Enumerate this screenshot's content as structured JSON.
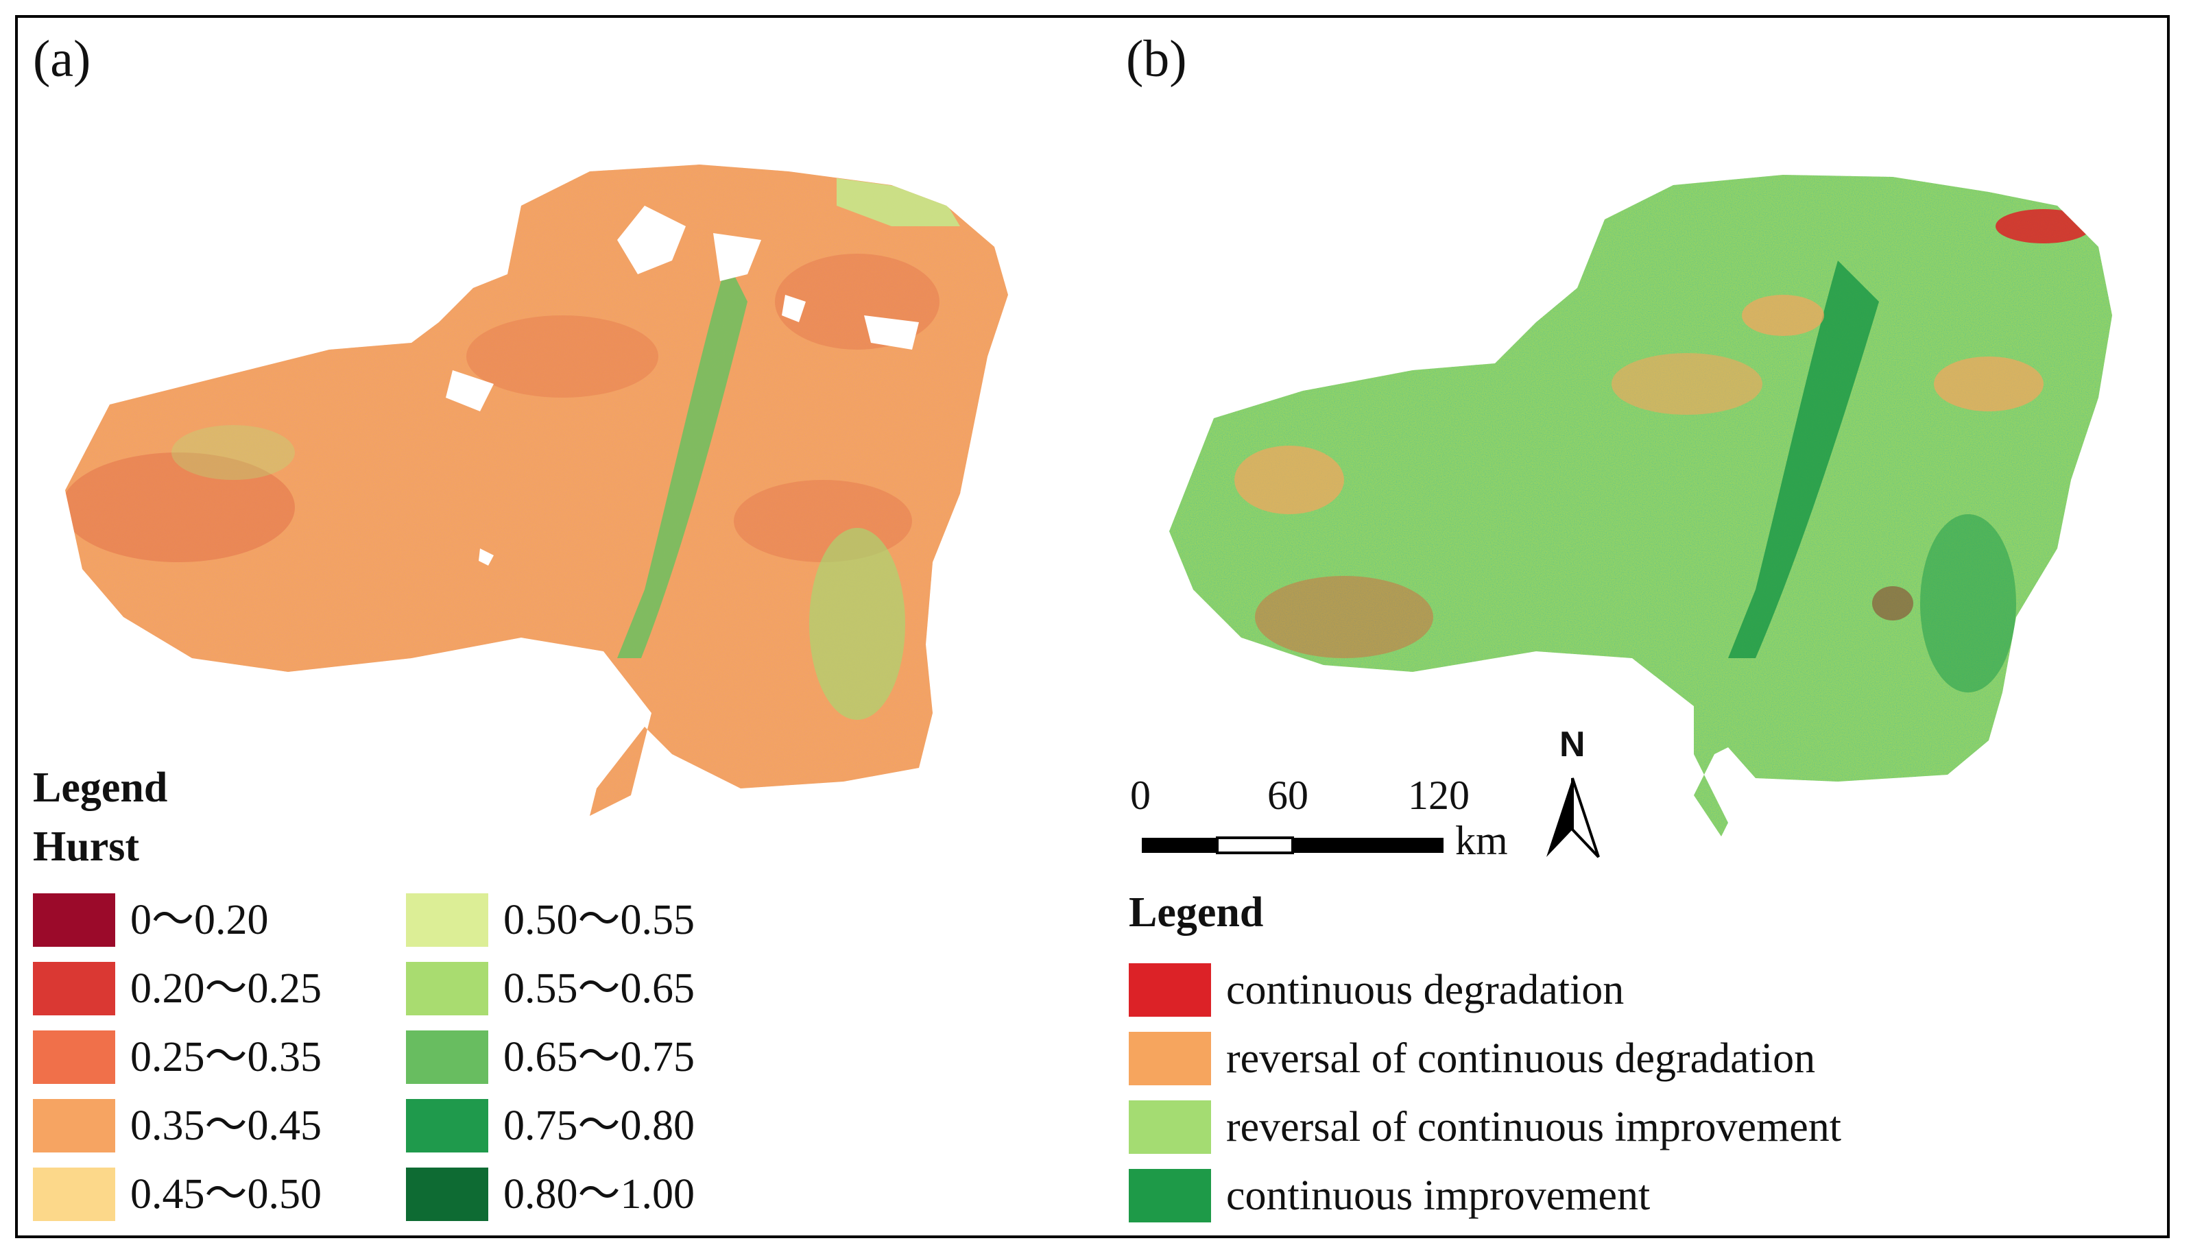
{
  "panel_a": {
    "label": "(a)",
    "legend_title": "Legend",
    "legend_subtitle": "Hurst",
    "classes": [
      {
        "label": "0～0.20",
        "color": "#9b0a2a"
      },
      {
        "label": "0.20～0.25",
        "color": "#da3833"
      },
      {
        "label": "0.25～0.35",
        "color": "#f0704a"
      },
      {
        "label": "0.35～0.45",
        "color": "#f6a462"
      },
      {
        "label": "0.45～0.50",
        "color": "#fcd88a"
      },
      {
        "label": "0.50～0.55",
        "color": "#dcee96"
      },
      {
        "label": "0.55～0.65",
        "color": "#a9dc70"
      },
      {
        "label": "0.65～0.75",
        "color": "#68bd60"
      },
      {
        "label": "0.75～0.80",
        "color": "#1f9a4c"
      },
      {
        "label": "0.80～1.00",
        "color": "#0e6b33"
      }
    ]
  },
  "panel_b": {
    "label": "(b)",
    "legend_title": "Legend",
    "classes": [
      {
        "label": "continuous degradation",
        "color": "#dc2227"
      },
      {
        "label": "reversal of continuous degradation",
        "color": "#f6a55e"
      },
      {
        "label": "reversal of continuous improvement",
        "color": "#a4dc72"
      },
      {
        "label": "continuous improvement",
        "color": "#1e9a48"
      }
    ],
    "scale_bar": {
      "ticks": [
        "0",
        "60",
        "120"
      ],
      "unit": "km"
    },
    "north_arrow": {
      "label": "N"
    }
  }
}
